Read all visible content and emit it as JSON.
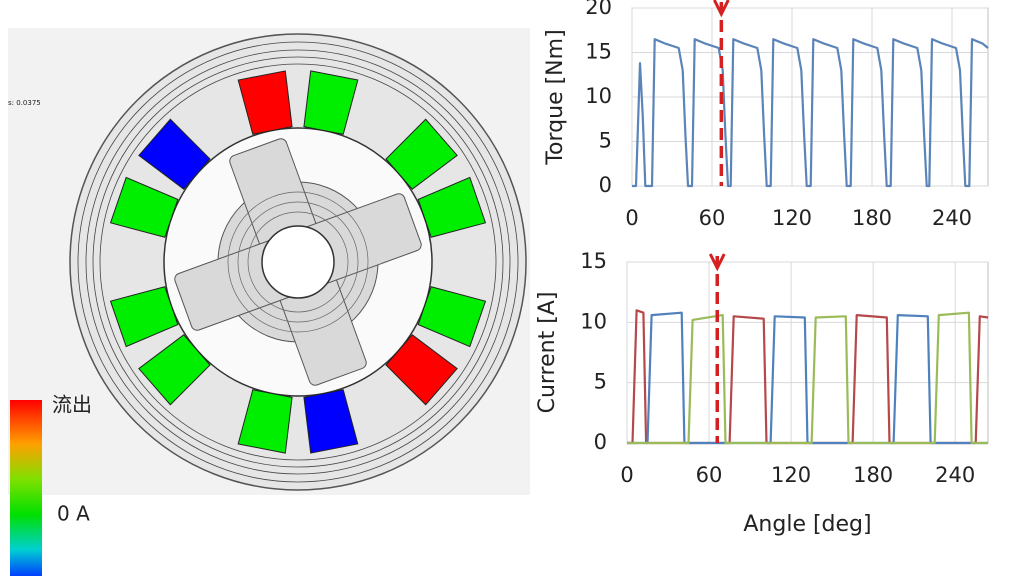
{
  "figure": {
    "legend_max": "流出",
    "legend_mid": "0 A",
    "time_label": "s: 0.0375"
  },
  "chart_data": [
    {
      "type": "line",
      "y_label": "Torque [Nm]",
      "grid": true,
      "marker_x": 67,
      "marker_color": "#d42020",
      "xlim": [
        0,
        267
      ],
      "xticks": [
        0,
        60,
        120,
        180,
        240
      ],
      "ylim": [
        0,
        20
      ],
      "yticks": [
        0,
        5,
        10,
        15,
        20
      ],
      "series": [
        {
          "color": "#5b84b8",
          "x": [
            0,
            3,
            6,
            8,
            10,
            15,
            17,
            25,
            35,
            38,
            40,
            42,
            45,
            47,
            55,
            65,
            68,
            70,
            72,
            74,
            76,
            84,
            94,
            97,
            99,
            101,
            104,
            106,
            114,
            124,
            127,
            129,
            131,
            134,
            136,
            144,
            154,
            157,
            159,
            161,
            164,
            166,
            174,
            184,
            187,
            189,
            191,
            194,
            196,
            204,
            214,
            217,
            219,
            221,
            223,
            225,
            233,
            243,
            246,
            248,
            250,
            253,
            255,
            263,
            267
          ],
          "values": [
            0,
            0,
            13.8,
            8,
            0,
            0,
            16.5,
            16,
            15.5,
            13,
            6,
            0,
            0,
            16.5,
            16,
            15.5,
            13,
            6,
            0,
            0,
            16.5,
            16,
            15.5,
            13,
            6,
            0,
            0,
            16.5,
            16,
            15.5,
            13,
            6,
            0,
            0,
            16.5,
            16,
            15.5,
            13,
            6,
            0,
            0,
            16.5,
            16,
            15.5,
            13,
            6,
            0,
            0,
            16.5,
            16,
            15.5,
            13,
            6,
            0,
            0,
            16.5,
            16,
            15.5,
            13,
            6,
            0,
            0,
            16.5,
            16,
            15.5
          ]
        }
      ]
    },
    {
      "type": "line",
      "y_label": "Current [A]",
      "x_label": "Angle [deg]",
      "grid": true,
      "marker_x": 66,
      "marker_color": "#d42020",
      "xlim": [
        0,
        264
      ],
      "xticks": [
        0,
        60,
        120,
        180,
        240
      ],
      "ylim": [
        0,
        15
      ],
      "yticks": [
        0,
        5,
        10,
        15
      ],
      "series": [
        {
          "color": "#b5484a",
          "x": [
            0,
            4,
            7,
            12,
            14,
            75,
            78,
            100,
            102,
            165,
            168,
            190,
            192,
            255,
            258,
            264
          ],
          "values": [
            0,
            0,
            11,
            10.8,
            0,
            0,
            10.5,
            10.3,
            0,
            0,
            10.6,
            10.4,
            0,
            0,
            10.5,
            10.4
          ]
        },
        {
          "color": "#4f81bd",
          "x": [
            0,
            15,
            18,
            40,
            42,
            105,
            108,
            130,
            132,
            195,
            198,
            220,
            222,
            264
          ],
          "values": [
            0,
            0,
            10.6,
            10.8,
            0,
            0,
            10.5,
            10.4,
            0,
            0,
            10.6,
            10.5,
            0,
            0
          ]
        },
        {
          "color": "#9bbb59",
          "x": [
            0,
            45,
            48,
            70,
            72,
            135,
            138,
            160,
            162,
            225,
            228,
            250,
            252,
            264
          ],
          "values": [
            0,
            0,
            10.2,
            10.6,
            0,
            0,
            10.4,
            10.5,
            0,
            0,
            10.6,
            10.8,
            0,
            0
          ]
        }
      ]
    }
  ]
}
